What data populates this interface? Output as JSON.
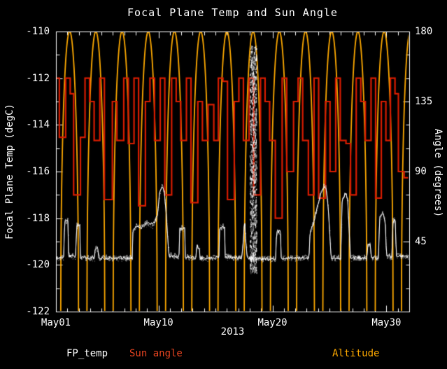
{
  "chart_data": {
    "type": "line",
    "title": "Focal Plane Temp and Sun Angle",
    "xlabel": "2013",
    "ylabel_left": "Focal Plane Temp (degC)",
    "ylabel_right": "Angle (degrees)",
    "background": "#000000",
    "frame_color": "#ffffff",
    "x_range": [
      1,
      32
    ],
    "x_ticks": [
      {
        "value": 1,
        "label": "May01"
      },
      {
        "value": 10,
        "label": "May10"
      },
      {
        "value": 20,
        "label": "May20"
      },
      {
        "value": 30,
        "label": "May30"
      }
    ],
    "x_minor_step": 1,
    "y_left_range": [
      -122,
      -110
    ],
    "y_left_ticks": [
      -110,
      -112,
      -114,
      -116,
      -118,
      -120,
      -122
    ],
    "y_left_major_step": 2,
    "y_left_minor_step": 1,
    "y_right_range": [
      0,
      180
    ],
    "y_right_tick_labels": [
      180,
      135,
      90,
      45
    ],
    "y_right_major_step": 45,
    "y_right_minor_step": 15,
    "grid": false,
    "series": [
      {
        "name": "Altitude",
        "axis": "right",
        "color": "#ffaa00",
        "style": "arch",
        "peak": 180,
        "base": 0,
        "arch_half_width": 0.78,
        "arch_centers": [
          2.2,
          4.5,
          6.8,
          9.1,
          11.4,
          13.7,
          16.0,
          18.3,
          20.6,
          22.9,
          25.2,
          27.5,
          29.8,
          32.1
        ]
      },
      {
        "name": "Sun angle",
        "axis": "right",
        "color": "#d81c00",
        "style": "step",
        "points": [
          [
            1.0,
            150
          ],
          [
            1.3,
            112
          ],
          [
            1.8,
            112
          ],
          [
            1.85,
            150
          ],
          [
            2.2,
            150
          ],
          [
            2.25,
            140
          ],
          [
            2.5,
            140
          ],
          [
            2.55,
            75
          ],
          [
            3.1,
            75
          ],
          [
            3.15,
            112
          ],
          [
            3.5,
            112
          ],
          [
            3.55,
            150
          ],
          [
            3.9,
            150
          ],
          [
            3.95,
            135
          ],
          [
            4.3,
            135
          ],
          [
            4.35,
            110
          ],
          [
            4.8,
            110
          ],
          [
            4.85,
            150
          ],
          [
            5.2,
            150
          ],
          [
            5.25,
            72
          ],
          [
            5.9,
            72
          ],
          [
            5.95,
            135
          ],
          [
            6.3,
            135
          ],
          [
            6.35,
            110
          ],
          [
            6.9,
            110
          ],
          [
            6.95,
            150
          ],
          [
            7.3,
            150
          ],
          [
            7.35,
            108
          ],
          [
            7.8,
            108
          ],
          [
            7.85,
            150
          ],
          [
            8.2,
            150
          ],
          [
            8.25,
            68
          ],
          [
            8.8,
            68
          ],
          [
            8.85,
            135
          ],
          [
            9.2,
            135
          ],
          [
            9.25,
            150
          ],
          [
            9.6,
            150
          ],
          [
            9.65,
            110
          ],
          [
            10.1,
            110
          ],
          [
            10.15,
            150
          ],
          [
            10.5,
            150
          ],
          [
            10.55,
            75
          ],
          [
            11.1,
            75
          ],
          [
            11.15,
            150
          ],
          [
            11.5,
            150
          ],
          [
            11.55,
            135
          ],
          [
            11.9,
            135
          ],
          [
            11.95,
            110
          ],
          [
            12.4,
            110
          ],
          [
            12.45,
            150
          ],
          [
            12.8,
            150
          ],
          [
            12.85,
            70
          ],
          [
            13.4,
            70
          ],
          [
            13.45,
            135
          ],
          [
            13.8,
            135
          ],
          [
            13.85,
            110
          ],
          [
            14.3,
            110
          ],
          [
            14.35,
            133
          ],
          [
            14.8,
            133
          ],
          [
            14.85,
            110
          ],
          [
            15.2,
            110
          ],
          [
            15.25,
            150
          ],
          [
            15.6,
            150
          ],
          [
            15.65,
            148
          ],
          [
            16.0,
            148
          ],
          [
            16.05,
            72
          ],
          [
            16.6,
            72
          ],
          [
            16.65,
            135
          ],
          [
            17.0,
            135
          ],
          [
            17.05,
            150
          ],
          [
            17.4,
            150
          ],
          [
            17.45,
            110
          ],
          [
            17.9,
            110
          ],
          [
            17.95,
            150
          ],
          [
            18.3,
            150
          ],
          [
            18.35,
            75
          ],
          [
            18.9,
            75
          ],
          [
            18.95,
            150
          ],
          [
            19.3,
            150
          ],
          [
            19.35,
            135
          ],
          [
            19.7,
            135
          ],
          [
            19.75,
            110
          ],
          [
            20.2,
            110
          ],
          [
            20.25,
            60
          ],
          [
            20.8,
            60
          ],
          [
            20.85,
            150
          ],
          [
            21.2,
            150
          ],
          [
            21.25,
            90
          ],
          [
            21.8,
            90
          ],
          [
            21.85,
            135
          ],
          [
            22.2,
            135
          ],
          [
            22.25,
            150
          ],
          [
            22.6,
            150
          ],
          [
            22.65,
            110
          ],
          [
            23.1,
            110
          ],
          [
            23.15,
            75
          ],
          [
            23.6,
            75
          ],
          [
            23.65,
            150
          ],
          [
            24.0,
            150
          ],
          [
            24.05,
            73
          ],
          [
            24.6,
            73
          ],
          [
            24.65,
            135
          ],
          [
            25.0,
            135
          ],
          [
            25.05,
            90
          ],
          [
            25.5,
            90
          ],
          [
            25.55,
            150
          ],
          [
            25.9,
            150
          ],
          [
            25.95,
            110
          ],
          [
            26.4,
            110
          ],
          [
            26.45,
            108
          ],
          [
            26.8,
            108
          ],
          [
            26.85,
            75
          ],
          [
            27.3,
            75
          ],
          [
            27.35,
            150
          ],
          [
            27.7,
            150
          ],
          [
            27.75,
            135
          ],
          [
            28.1,
            135
          ],
          [
            28.15,
            110
          ],
          [
            28.6,
            110
          ],
          [
            28.65,
            150
          ],
          [
            29.0,
            150
          ],
          [
            29.05,
            73
          ],
          [
            29.5,
            73
          ],
          [
            29.55,
            135
          ],
          [
            29.9,
            135
          ],
          [
            29.95,
            110
          ],
          [
            30.3,
            110
          ],
          [
            30.35,
            150
          ],
          [
            30.7,
            150
          ],
          [
            30.75,
            140
          ],
          [
            31.0,
            140
          ],
          [
            31.05,
            90
          ],
          [
            31.5,
            90
          ],
          [
            31.55,
            86
          ],
          [
            31.9,
            86
          ]
        ]
      },
      {
        "name": "FP_temp",
        "axis": "left",
        "color": "#ffffff",
        "style": "noisy-line",
        "noise_degc": 0.07,
        "points": [
          [
            1.0,
            -119.7
          ],
          [
            1.7,
            -119.7
          ],
          [
            1.75,
            -118.15
          ],
          [
            2.05,
            -118.1
          ],
          [
            2.1,
            -119.6
          ],
          [
            2.75,
            -119.65
          ],
          [
            2.8,
            -118.3
          ],
          [
            3.1,
            -118.25
          ],
          [
            3.15,
            -119.7
          ],
          [
            4.4,
            -119.7
          ],
          [
            4.45,
            -119.3
          ],
          [
            4.7,
            -119.3
          ],
          [
            4.75,
            -119.7
          ],
          [
            7.7,
            -119.7
          ],
          [
            7.75,
            -118.6
          ],
          [
            8.1,
            -118.3
          ],
          [
            8.5,
            -118.4
          ],
          [
            9.0,
            -118.2
          ],
          [
            9.5,
            -118.3
          ],
          [
            9.9,
            -117.9
          ],
          [
            10.1,
            -116.9
          ],
          [
            10.3,
            -116.6
          ],
          [
            10.5,
            -116.8
          ],
          [
            10.7,
            -118.0
          ],
          [
            10.9,
            -119.6
          ],
          [
            11.8,
            -119.65
          ],
          [
            11.85,
            -118.45
          ],
          [
            12.3,
            -118.4
          ],
          [
            12.35,
            -119.65
          ],
          [
            13.3,
            -119.7
          ],
          [
            13.35,
            -119.2
          ],
          [
            13.6,
            -119.25
          ],
          [
            13.65,
            -119.7
          ],
          [
            15.3,
            -119.7
          ],
          [
            15.35,
            -118.4
          ],
          [
            15.8,
            -118.35
          ],
          [
            15.85,
            -119.65
          ],
          [
            17.0,
            -119.7
          ],
          [
            17.3,
            -119.7
          ],
          [
            17.45,
            -119.0
          ],
          [
            17.55,
            -118.0
          ],
          [
            17.65,
            -119.0
          ],
          [
            17.8,
            -119.7
          ],
          [
            19.0,
            -119.75
          ],
          [
            20.3,
            -119.75
          ],
          [
            20.35,
            -118.6
          ],
          [
            20.7,
            -118.55
          ],
          [
            20.75,
            -119.7
          ],
          [
            23.2,
            -119.7
          ],
          [
            23.3,
            -118.6
          ],
          [
            23.6,
            -118.2
          ],
          [
            23.9,
            -117.6
          ],
          [
            24.2,
            -117.0
          ],
          [
            24.5,
            -116.65
          ],
          [
            24.7,
            -116.7
          ],
          [
            24.9,
            -117.6
          ],
          [
            25.1,
            -119.3
          ],
          [
            25.15,
            -119.7
          ],
          [
            26.0,
            -119.7
          ],
          [
            26.1,
            -117.3
          ],
          [
            26.4,
            -116.9
          ],
          [
            26.6,
            -117.2
          ],
          [
            26.8,
            -119.3
          ],
          [
            26.85,
            -119.7
          ],
          [
            28.3,
            -119.7
          ],
          [
            28.35,
            -119.1
          ],
          [
            28.6,
            -119.15
          ],
          [
            28.65,
            -119.7
          ],
          [
            29.3,
            -119.7
          ],
          [
            29.4,
            -118.0
          ],
          [
            29.7,
            -117.8
          ],
          [
            29.9,
            -118.2
          ],
          [
            30.0,
            -119.6
          ],
          [
            30.5,
            -119.65
          ],
          [
            30.55,
            -118.1
          ],
          [
            30.8,
            -118.05
          ],
          [
            30.85,
            -119.6
          ],
          [
            32.0,
            -119.65
          ]
        ],
        "burst": {
          "x": 18.3,
          "width": 0.6,
          "y_min": -120.3,
          "y_max": -110.6,
          "count": 1000
        }
      }
    ],
    "legend": [
      {
        "label": "FP_temp",
        "color": "#ffffff"
      },
      {
        "label": "Sun angle",
        "color": "#e84420"
      },
      {
        "label": "Altitude",
        "color": "#ffaa00"
      }
    ]
  }
}
